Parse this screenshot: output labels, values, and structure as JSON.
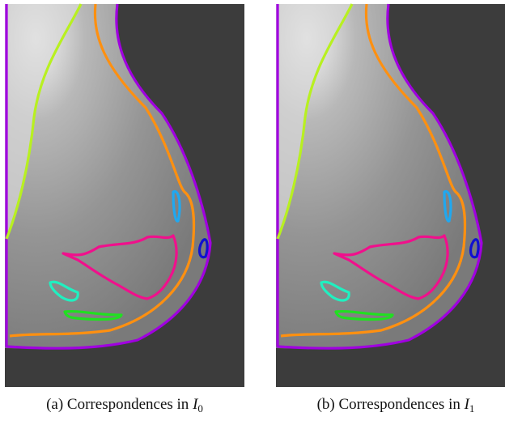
{
  "panels": [
    {
      "caption": "(a) Correspondences in",
      "variable": "I",
      "subscript": "0"
    },
    {
      "caption": "(b) Correspondences in",
      "variable": "I",
      "subscript": "1"
    }
  ]
}
